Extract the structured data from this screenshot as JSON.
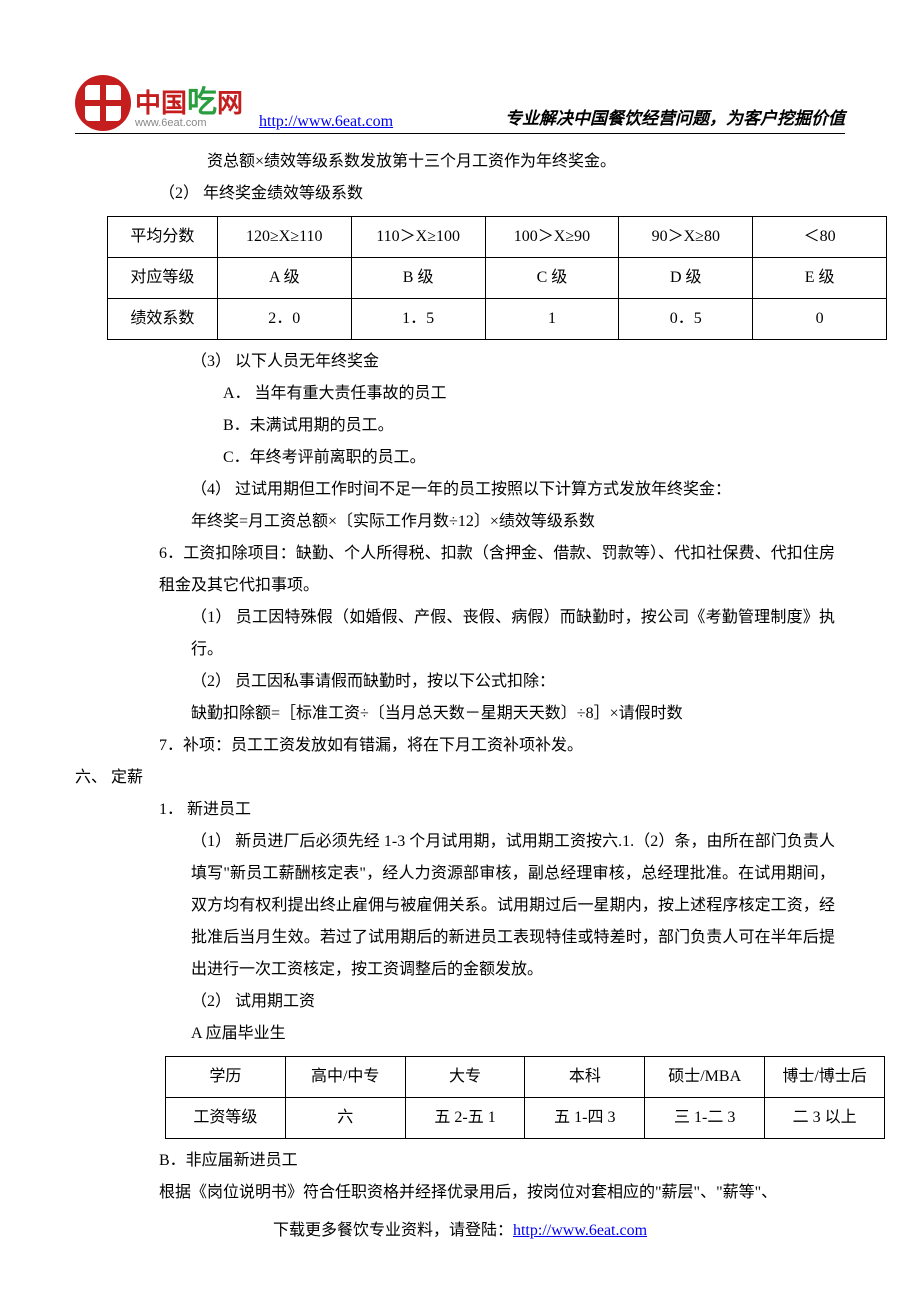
{
  "header": {
    "logo_cn_1": "中国",
    "logo_cn_2": "吃",
    "logo_cn_3": "网",
    "logo_url": "www.6eat.com",
    "link": "http://www.6eat.com",
    "slogan": "专业解决中国餐饮经营问题，为客户挖掘价值"
  },
  "body": {
    "line1": "资总额×绩效等级系数发放第十三个月工资作为年终奖金。",
    "line2": "（2） 年终奖金绩效等级系数",
    "line3": "（3） 以下人员无年终奖金",
    "line3a": "A． 当年有重大责任事故的员工",
    "line3b": "B．未满试用期的员工。",
    "line3c": "C．年终考评前离职的员工。",
    "line4": "（4） 过试用期但工作时间不足一年的员工按照以下计算方式发放年终奖金：",
    "line4a": "年终奖=月工资总额×〔实际工作月数÷12〕×绩效等级系数",
    "line5": "6．工资扣除项目：缺勤、个人所得税、扣款（含押金、借款、罚款等）、代扣社保费、代扣住房租金及其它代扣事项。",
    "line5_1": "（1） 员工因特殊假（如婚假、产假、丧假、病假）而缺勤时，按公司《考勤管理制度》执行。",
    "line5_2": "（2） 员工因私事请假而缺勤时，按以下公式扣除：",
    "line5_2a": "缺勤扣除额=［标准工资÷〔当月总天数－星期天天数〕÷8］×请假时数",
    "line6": "7．补项：员工工资发放如有错漏，将在下月工资补项补发。",
    "sec6": "六、 定薪",
    "sec6_1": "1． 新进员工",
    "sec6_1_1": "（1） 新员进厂后必须先经 1-3 个月试用期，试用期工资按六.1.（2）条，由所在部门负责人填写\"新员工薪酬核定表\"，经人力资源部审核，副总经理审核，总经理批准。在试用期间，双方均有权利提出终止雇佣与被雇佣关系。试用期过后一星期内，按上述程序核定工资，经批准后当月生效。若过了试用期后的新进员工表现特佳或特差时，部门负责人可在半年后提出进行一次工资核定，按工资调整后的金额发放。",
    "sec6_1_2": "（2） 试用期工资",
    "sec6_1_2a": "A 应届毕业生",
    "sec6_1_2b": "B．非应届新进员工",
    "sec6_1_2b_body": "根据《岗位说明书》符合任职资格并经择优录用后，按岗位对套相应的\"薪层\"、\"薪等\"、"
  },
  "table1": {
    "rows": [
      [
        "平均分数",
        "120≥X≥110",
        "110＞X≥100",
        "100＞X≥90",
        "90＞X≥80",
        "＜80"
      ],
      [
        "对应等级",
        "A 级",
        "B 级",
        "C 级",
        "D 级",
        "E 级"
      ],
      [
        "绩效系数",
        "2．0",
        "1．5",
        "1",
        "0．5",
        "0"
      ]
    ]
  },
  "table2": {
    "rows": [
      [
        "学历",
        "高中/中专",
        "大专",
        "本科",
        "硕士/MBA",
        "博士/博士后"
      ],
      [
        "工资等级",
        "六",
        "五 2-五 1",
        "五 1-四 3",
        "三 1-二 3",
        "二 3 以上"
      ]
    ]
  },
  "footer": {
    "text": "下载更多餐饮专业资料，请登陆：",
    "link": "http://www.6eat.com"
  }
}
